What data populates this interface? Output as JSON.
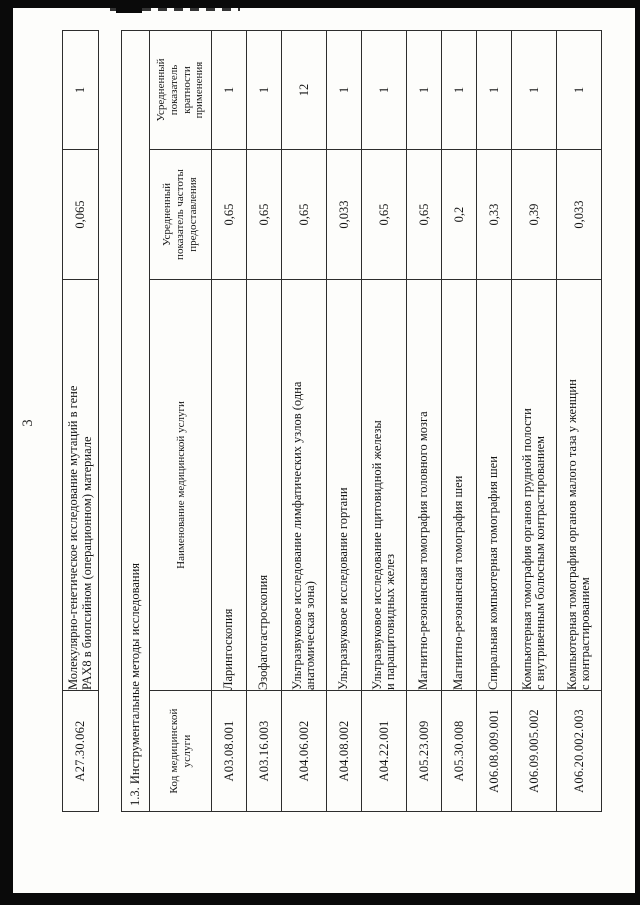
{
  "page": {
    "number": "3",
    "section_heading": "1.3. Инструментальные методы исследования"
  },
  "continuation_table": {
    "rows": [
      {
        "code": "А27.30.062",
        "name_lines": [
          "Молекулярно-генетическое исследование мутаций в гене",
          "РАХ8 в биопсийном (операционном) материале"
        ],
        "frequency": "0,065",
        "multiplicity": "1"
      }
    ]
  },
  "methods_table": {
    "headers": {
      "code_lines": [
        "Код медицинской",
        "услуги"
      ],
      "name": "Наименование медицинской услуги",
      "frequency_lines": [
        "Усредненный",
        "показатель частоты",
        "предоставления"
      ],
      "multiplicity_lines": [
        "Усредненный",
        "показатель",
        "кратности",
        "применения"
      ]
    },
    "rows": [
      {
        "code": "А03.08.001",
        "name_lines": [
          "Ларингоскопия"
        ],
        "frequency": "0,65",
        "multiplicity": "1"
      },
      {
        "code": "А03.16.003",
        "name_lines": [
          "Эзофагогастроскопия"
        ],
        "frequency": "0,65",
        "multiplicity": "1"
      },
      {
        "code": "А04.06.002",
        "name_lines": [
          "Ультразвуковое исследование лимфатических узлов (одна",
          "анатомическая зона)"
        ],
        "frequency": "0,65",
        "multiplicity": "12"
      },
      {
        "code": "А04.08.002",
        "name_lines": [
          "Ультразвуковое исследование гортани"
        ],
        "frequency": "0,033",
        "multiplicity": "1"
      },
      {
        "code": "А04.22.001",
        "name_lines": [
          "Ультразвуковое исследование щитовидной железы",
          "и паращитовидных желез"
        ],
        "frequency": "0,65",
        "multiplicity": "1"
      },
      {
        "code": "А05.23.009",
        "name_lines": [
          "Магнитно-резонансная томография головного мозга"
        ],
        "frequency": "0,65",
        "multiplicity": "1"
      },
      {
        "code": "А05.30.008",
        "name_lines": [
          "Магнитно-резонансная томография шеи"
        ],
        "frequency": "0,2",
        "multiplicity": "1"
      },
      {
        "code": "А06.08.009.001",
        "name_lines": [
          "Спиральная компьютерная томография шеи"
        ],
        "frequency": "0,33",
        "multiplicity": "1"
      },
      {
        "code": "А06.09.005.002",
        "name_lines": [
          "Компьютерная томография органов грудной полости",
          "с внутривенным болюсным контрастированием"
        ],
        "frequency": "0,39",
        "multiplicity": "1"
      },
      {
        "code": "А06.20.002.003",
        "name_lines": [
          "Компьютерная томография органов малого таза у женщин",
          "с контрастированием"
        ],
        "frequency": "0,033",
        "multiplicity": "1"
      }
    ]
  },
  "colors": {
    "paper": "#fdfdfb",
    "ink": "#161616",
    "grid_line": "#2d2d2d",
    "scan_frame": "#0a0a0a"
  }
}
